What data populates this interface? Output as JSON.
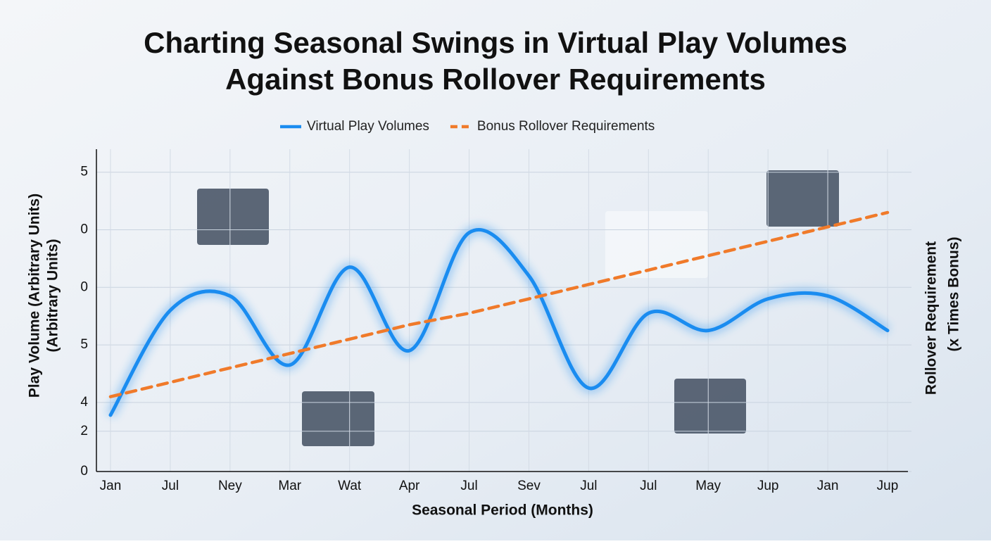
{
  "chart_data": {
    "type": "line",
    "title": [
      "Charting Seasonal Swings in Virtual Play Volumes",
      "Against Bonus Rollover Requirements"
    ],
    "x_label": "Seasonal Period (Months)",
    "y_label": [
      "Play Volume (Arbitrary Units)",
      "(Arbitrary Units)"
    ],
    "y2_label": [
      "Rollover Requirement",
      "(x Times Bonus)"
    ],
    "categories": [
      "Jan",
      "Jul",
      "Ney",
      "Mar",
      "Wat",
      "Apr",
      "Jul",
      "Sev",
      "Jul",
      "Jul",
      "May",
      "Jup",
      "Jan",
      "Jup"
    ],
    "series": [
      {
        "name": "Virtual Play Volumes",
        "color": "#1a8cf0",
        "style": "solid",
        "values": [
          1.96,
          5.6,
          6.1,
          3.7,
          7.1,
          4.2,
          8.3,
          6.8,
          2.9,
          5.5,
          4.9,
          6.0,
          6.1,
          4.9
        ]
      },
      {
        "name": "Bonus Rollover Requirements",
        "color": "#f07a2a",
        "style": "dashed",
        "values": [
          2.6,
          3.1,
          3.6,
          4.1,
          4.6,
          5.1,
          5.5,
          6.0,
          6.5,
          7.0,
          7.5,
          8.0,
          8.5,
          9.0
        ]
      }
    ],
    "ylim": [
      0,
      11.2
    ],
    "yticks": [
      0,
      {
        "value": 1.4,
        "label": "2"
      },
      {
        "value": 2.4,
        "label": "4"
      },
      {
        "value": 4.4,
        "label": "5"
      },
      {
        "value": 6.4,
        "label": "0"
      },
      {
        "value": 8.4,
        "label": "0"
      },
      {
        "value": 10.4,
        "label": "5"
      }
    ],
    "grid": true,
    "legend": "top"
  }
}
